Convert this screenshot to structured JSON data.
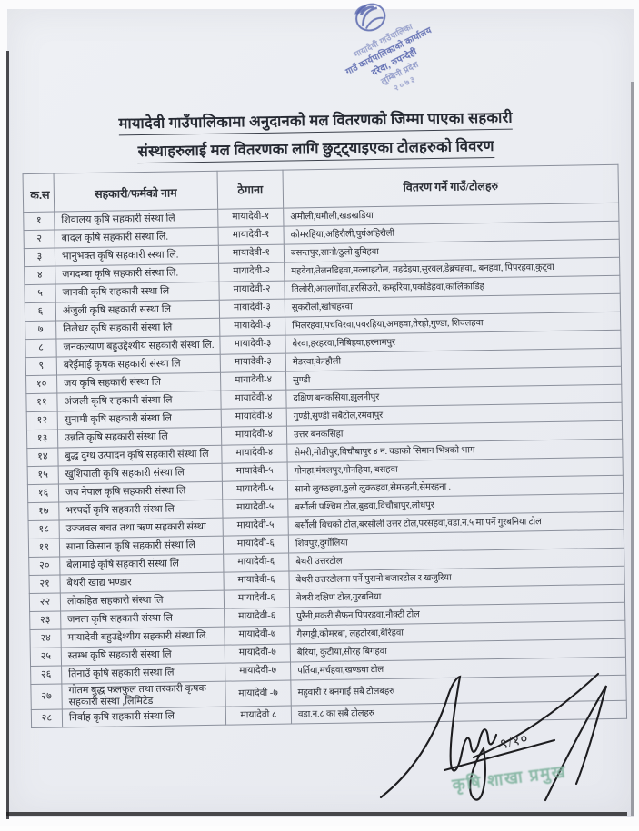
{
  "title": {
    "line1": "मायादेवी गाउँपालिकामा अनुदानको मल वितरणको जिम्मा पाएका सहकारी",
    "line2": "संस्थाहरुलाई मल वितरणका लागि छुट्ट्याइएका टोलहरुको विवरण"
  },
  "stamp_top": {
    "color": "#4656a6",
    "line1": "मायादेवी गाउँपालिका",
    "line2": "गाउँ कार्यपालिकाको कार्यालय",
    "line3": "दरेवा, रुपन्देही",
    "line4": "लुम्बिनी प्रदेश",
    "line5": "२०७३"
  },
  "table": {
    "headers": {
      "sn": "क.स",
      "name": "सहकारी/फर्मको नाम",
      "address": "ठेगाना",
      "toles": "वितरण गर्ने गाउँ/टोलहरु"
    },
    "rows": [
      {
        "sn": "१",
        "name": "शिवालय कृषि सहकारी संस्था लि",
        "address": "मायादेवी-१",
        "toles": "अमौली,धमौली,खडखडिया"
      },
      {
        "sn": "२",
        "name": "बादल कृषि सहकारी संस्था लि.",
        "address": "मायादेवी-१",
        "toles": "कोमरहिया,अहिरौली,पुर्वअहिरौली"
      },
      {
        "sn": "३",
        "name": "भानुभक्त कृषि सहकारी स्स्था लि.",
        "address": "मायादेवी-१",
        "toles": "बसन्तपुर,सानो/ठुलो दुबिहवा"
      },
      {
        "sn": "४",
        "name": "जगदम्बा कृषि सहकारी संस्था लि.",
        "address": "मायादेवी-२",
        "toles": "महदेवा,तेलनडिहवा,मल्लाहटोल, महदेइया,सुरवल,डेब्रचहवा,, बनहवा, पिपरहवा,कुट्वा"
      },
      {
        "sn": "५",
        "name": "जानकी कृषि सहकारी स्स्था लि",
        "address": "मायादेवी-२",
        "toles": "तिलोरी,अगलगोंवा,हरसिउरी, कम्हरिया,पकडिहवा,कालिकाडिह"
      },
      {
        "sn": "६",
        "name": "अंजुली कृषि सहकारी संस्था लि",
        "address": "मायादेवी-३",
        "toles": "सुकरौली,खोचहरवा"
      },
      {
        "sn": "७",
        "name": "तिलेधर कृषि सहकारी संस्था लि",
        "address": "मायादेवी-३",
        "toles": "भिलरहवा,पचविरवा,पयरहिया,अमहवा,तेरहो,गुण्डा, शिवलहवा"
      },
      {
        "sn": "८",
        "name": "जनकल्याण बहुउद्देश्यीय सहकारी संस्था लि.",
        "address": "मायादेवी-३",
        "toles": "बेरवा,हरहरवा,निबिहवा,हरनामपुर"
      },
      {
        "sn": "९",
        "name": "बरेईमाई कृषक सहकारी संस्था लि",
        "address": "मायादेवी-३",
        "toles": "मेडरवा,केन्हौली"
      },
      {
        "sn": "१०",
        "name": "जय कृषि सहकारी संस्था लि",
        "address": "मायादेवी-४",
        "toles": "सुण्डी"
      },
      {
        "sn": "११",
        "name": "अंजली कृषि सहकारी संस्था लि",
        "address": "मायादेवी-४",
        "toles": "दक्षिण बनकसिया,झुलनीपुर"
      },
      {
        "sn": "१२",
        "name": "सुनामी कृषि सहकारी संस्था लि",
        "address": "मायादेवी-४",
        "toles": "गुण्डी,सुण्डी सबैटोल,रमवापुर"
      },
      {
        "sn": "१३",
        "name": "उन्नति कृषि सहकारी संस्था लि",
        "address": "मायादेवी-४",
        "toles": "उत्तर बनकसिहा"
      },
      {
        "sn": "१४",
        "name": "बुद्ध दुग्ध उत्पादन कृषि सहकारी संस्था लि",
        "address": "मायादेवी-४",
        "toles": "सेमरी,मोतीपुर,विचौबापुर ४ न. वडाको सिमान भित्रको भाग"
      },
      {
        "sn": "१५",
        "name": "खुशियाली कृषि सहकारी संस्था लि",
        "address": "मायादेवी-५",
        "toles": "गोनहा,मंगलपुर,गोनहिया, बसहवा"
      },
      {
        "sn": "१६",
        "name": "जय नेपाल कृषि सहकारी संस्था लि",
        "address": "मायादेवी-५",
        "toles": "सानो लुक्ठहवा,ठुलो लुक्ठहवा,सेमरहनी,सेमरहना ."
      },
      {
        "sn": "१७",
        "name": "भरपर्दो कृषि सहकारी संस्था लि",
        "address": "मायादेवी-५",
        "toles": "बर्सौली पश्चिम टोल,बुडवा,विचौबापुर,लोधपुर"
      },
      {
        "sn": "१८",
        "name": "उज्जवल बचत तथा ऋण सहकारी संस्था",
        "address": "मायादेवी-५",
        "toles": "बर्सौली बिचको टोल,बरसौली उत्तर टोल,परसहवा,वडा.न.५ मा पर्ने गुरबनिया टोल"
      },
      {
        "sn": "१९",
        "name": "साना किसान कृषि सहकारी संस्था लि",
        "address": "मायादेवी-६",
        "toles": "शिवपुर,दुर्गौलिया"
      },
      {
        "sn": "२०",
        "name": "बेलामाई कृषि सहकारी संस्था लि",
        "address": "मायादेवी-६",
        "toles": "बेथरी उत्तरटोल"
      },
      {
        "sn": "२१",
        "name": "बेथरी खाद्य भण्डार",
        "address": "मायादेवी-६",
        "toles": "बेथरी उत्तरटोलमा पर्ने पुरानो बजारटोल र खजुरिया"
      },
      {
        "sn": "२२",
        "name": "लोकहित सहकारी संस्था लि",
        "address": "मायादेवी-६",
        "toles": "बेथरी दक्षिण टोल,गुरबनिया"
      },
      {
        "sn": "२३",
        "name": "जनता कृषि सहकारी संस्था लि",
        "address": "मायादेवी-६",
        "toles": "पुरैनी,मकरी,सैफन,पिपरहवा,नौक्टी टोल"
      },
      {
        "sn": "२४",
        "name": "मायादेवी बहुउद्देश्यीय सहकारी संस्था लि.",
        "address": "मायादेवी-७",
        "toles": "गैरगट्टी,कोमरबा, लहटोरबा,बैरिहवा"
      },
      {
        "sn": "२५",
        "name": "स्तम्भ कृषि सहकारी संस्था लि",
        "address": "मायादेवी-७",
        "toles": "बैरिया, कुटीया,सोरह बिगहवा"
      },
      {
        "sn": "२६",
        "name": "तिनाउँ कृषि सहकारी संस्था लि",
        "address": "मायादेवी-७",
        "toles": "पर्तिया,मर्चहवा,खण्डवा टोल"
      },
      {
        "sn": "२७",
        "name": "गोतम बुद्ध फलफुल तथा तरकारी कृषक सहकारी संस्था ,लिमिटेड",
        "address": "मायादेवी -७",
        "toles": "महुवारी र बनगाई सबै टोलबहरु"
      },
      {
        "sn": "२८",
        "name": "निर्वाह कृषि सहकारी संस्था लि",
        "address": "मायादेवी ८",
        "toles": "वडा.न.८ का सबै टोलहरु"
      }
    ]
  },
  "footer": {
    "signature_date": "९/१०",
    "stamp_text": "कृषि शाखा प्रमुख",
    "stamp_color": "#82b4a0"
  }
}
